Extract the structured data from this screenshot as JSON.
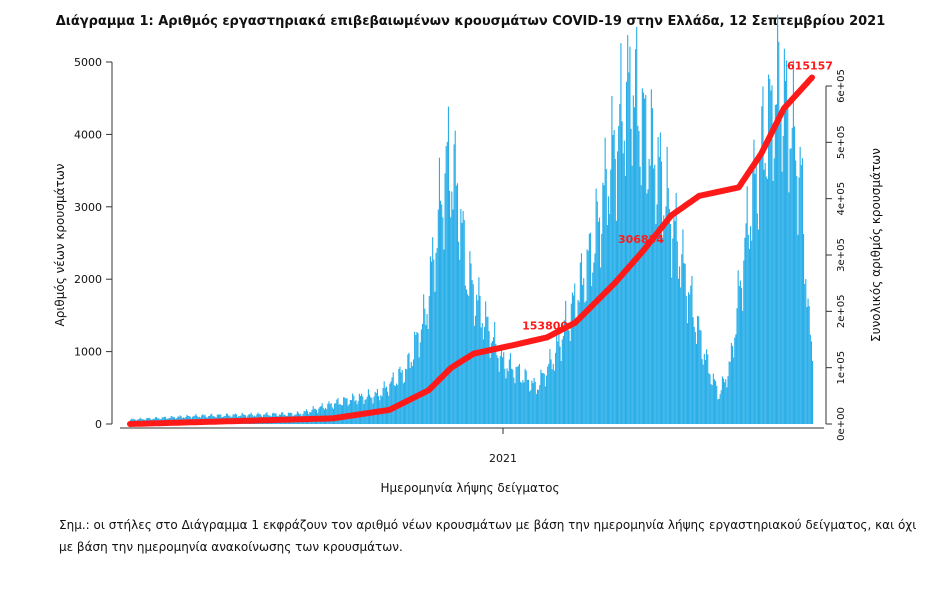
{
  "chart_data": {
    "type": "bar",
    "title": "Διάγραμμα 1: Αριθμός εργαστηριακά επιβεβαιωμένων κρουσμάτων COVID-19 στην Ελλάδα, 12 Σεπτεμβρίου 2021",
    "xlabel": "Ημερομηνία λήψης δείγματος",
    "ylabel_left": "Αριθμός νέων κρουσμάτων",
    "ylabel_right": "Συνολικός αριθμός κρουσμάτων",
    "x_tick": "2021",
    "ylim_left": [
      0,
      5000
    ],
    "yticks_left": [
      "0",
      "1000",
      "2000",
      "3000",
      "4000",
      "5000"
    ],
    "ylim_right": [
      0,
      615157
    ],
    "yticks_right": [
      "0e+00",
      "1e+05",
      "2e+05",
      "3e+05",
      "4e+05",
      "5e+05",
      "6e+05"
    ],
    "bar_color": "#29aee8",
    "line_color": "#ff1a1a",
    "cumulative_labels": [
      {
        "value": 153800,
        "text": "153800"
      },
      {
        "value": 306834,
        "text": "306834"
      },
      {
        "value": 615157,
        "text": "615157"
      }
    ],
    "daily_series_keypoints": [
      {
        "day": 0,
        "value": 60
      },
      {
        "day": 60,
        "value": 110
      },
      {
        "day": 150,
        "value": 140
      },
      {
        "day": 190,
        "value": 320
      },
      {
        "day": 220,
        "value": 400
      },
      {
        "day": 245,
        "value": 750
      },
      {
        "day": 262,
        "value": 1500
      },
      {
        "day": 275,
        "value": 3000
      },
      {
        "day": 282,
        "value": 3620
      },
      {
        "day": 290,
        "value": 3200
      },
      {
        "day": 298,
        "value": 2100
      },
      {
        "day": 312,
        "value": 1500
      },
      {
        "day": 330,
        "value": 850
      },
      {
        "day": 345,
        "value": 700
      },
      {
        "day": 360,
        "value": 500
      },
      {
        "day": 375,
        "value": 900
      },
      {
        "day": 395,
        "value": 1700
      },
      {
        "day": 410,
        "value": 2400
      },
      {
        "day": 425,
        "value": 3500
      },
      {
        "day": 435,
        "value": 4150
      },
      {
        "day": 445,
        "value": 4700
      },
      {
        "day": 452,
        "value": 4200
      },
      {
        "day": 468,
        "value": 3500
      },
      {
        "day": 485,
        "value": 2500
      },
      {
        "day": 500,
        "value": 1500
      },
      {
        "day": 512,
        "value": 800
      },
      {
        "day": 522,
        "value": 400
      },
      {
        "day": 532,
        "value": 800
      },
      {
        "day": 540,
        "value": 1800
      },
      {
        "day": 550,
        "value": 3000
      },
      {
        "day": 562,
        "value": 3900
      },
      {
        "day": 575,
        "value": 4600
      },
      {
        "day": 585,
        "value": 4200
      },
      {
        "day": 595,
        "value": 3300
      },
      {
        "day": 602,
        "value": 1300
      },
      {
        "day": 605,
        "value": 1000
      }
    ],
    "cumulative_keypoints": [
      {
        "day": 0,
        "value": 0
      },
      {
        "day": 180,
        "value": 10000
      },
      {
        "day": 230,
        "value": 25000
      },
      {
        "day": 265,
        "value": 60000
      },
      {
        "day": 285,
        "value": 100000
      },
      {
        "day": 305,
        "value": 125000
      },
      {
        "day": 340,
        "value": 140000
      },
      {
        "day": 370,
        "value": 153800
      },
      {
        "day": 395,
        "value": 180000
      },
      {
        "day": 430,
        "value": 250000
      },
      {
        "day": 455,
        "value": 306834
      },
      {
        "day": 480,
        "value": 370000
      },
      {
        "day": 505,
        "value": 405000
      },
      {
        "day": 540,
        "value": 420000
      },
      {
        "day": 560,
        "value": 480000
      },
      {
        "day": 580,
        "value": 560000
      },
      {
        "day": 605,
        "value": 615157
      }
    ]
  },
  "note": "Σημ.: οι στήλες στο Διάγραμμα 1 εκφράζουν τον αριθμό νέων κρουσμάτων με βάση την ημερομηνία λήψης εργαστηριακού δείγματος, και όχι με βάση την ημερομηνία ανακοίνωσης των κρουσμάτων."
}
